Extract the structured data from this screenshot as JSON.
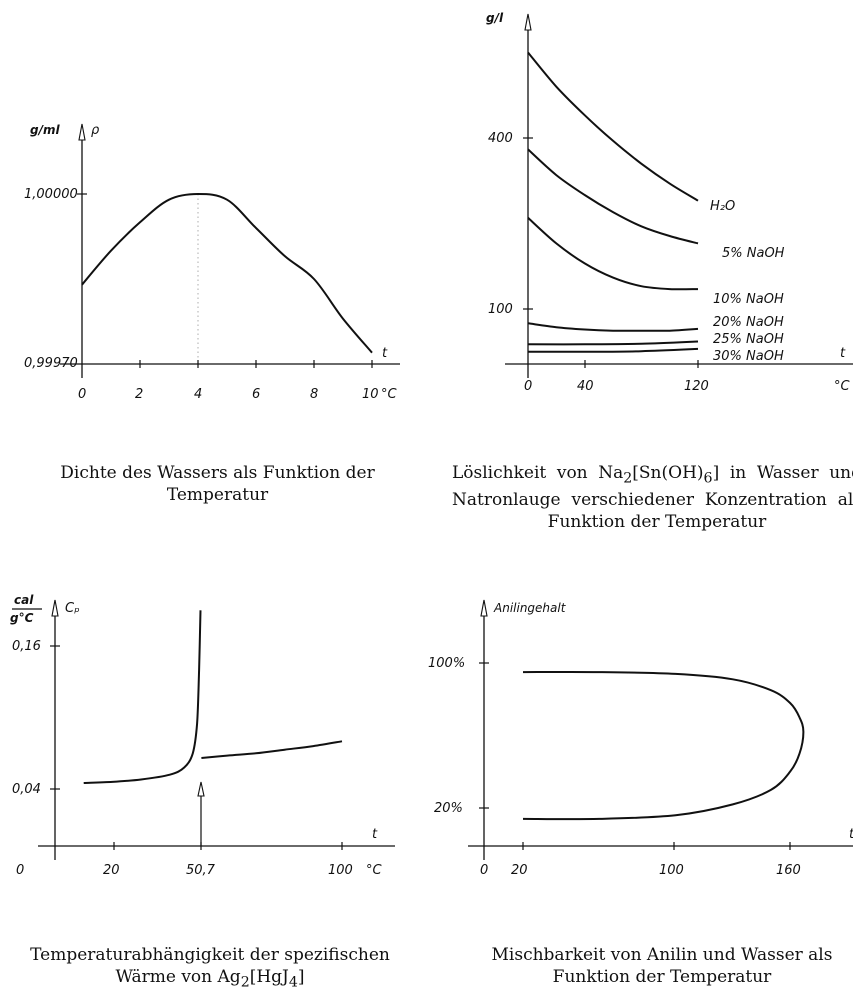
{
  "captions": {
    "density": "Dichte des Wassers als Funktion der Temperatur",
    "solubility_pre": "Löslichkeit von Na",
    "solubility_sub1": "2",
    "solubility_mid": "[Sn(OH)",
    "solubility_sub2": "6",
    "solubility_post": "] in Wasser und Natronlauge verschiedener Konzentration als Funktion der Temperatur",
    "heat_line1": "Temperaturabhängigkeit der spezifischen",
    "heat_line2_pre": "Wärme von Ag",
    "heat_sub1": "2",
    "heat_mid": "[HgJ",
    "heat_sub2": "4",
    "heat_post": "]",
    "miscibility_line1": "Mischbarkeit von Anilin und Wasser als",
    "miscibility_line2": "Funktion der Temperatur"
  },
  "chart_data": [
    {
      "type": "line",
      "id": "density",
      "y_unit": "g/ml",
      "y_symbol": "ρ",
      "x_symbol": "t",
      "x_unit": "°C",
      "x_ticks": [
        "0",
        "2",
        "4",
        "6",
        "8",
        "10"
      ],
      "y_ticks": [
        "0,99970",
        "1,00000"
      ],
      "xlim": [
        0,
        11
      ],
      "ylim": [
        0.9997,
        1.0
      ],
      "series": [
        {
          "x": [
            0,
            1,
            2,
            3,
            4,
            5,
            6,
            7,
            8,
            9,
            10
          ],
          "y": [
            0.99984,
            0.9999,
            0.99995,
            0.99999,
            1.0,
            0.99999,
            0.99994,
            0.99989,
            0.99985,
            0.99978,
            0.99972
          ]
        }
      ]
    },
    {
      "type": "line",
      "id": "solubility",
      "y_unit": "g/l",
      "x_symbol": "t",
      "x_unit": "°C",
      "x_ticks": [
        "0",
        "40",
        "120"
      ],
      "y_ticks": [
        "100",
        "400"
      ],
      "xlim": [
        0,
        150
      ],
      "ylim": [
        0,
        600
      ],
      "series": [
        {
          "name": "H₂O",
          "x": [
            0,
            20,
            40,
            60,
            80,
            100,
            120
          ],
          "y": [
            550,
            490,
            440,
            395,
            355,
            320,
            290
          ]
        },
        {
          "name": "5% NaOH",
          "x": [
            0,
            20,
            40,
            60,
            80,
            100,
            120
          ],
          "y": [
            380,
            335,
            300,
            270,
            245,
            228,
            215
          ]
        },
        {
          "name": "10% NaOH",
          "x": [
            0,
            20,
            40,
            60,
            80,
            100,
            120
          ],
          "y": [
            260,
            215,
            180,
            155,
            140,
            135,
            135
          ]
        },
        {
          "name": "20% NaOH",
          "x": [
            0,
            20,
            40,
            60,
            80,
            100,
            120
          ],
          "y": [
            75,
            68,
            64,
            62,
            62,
            62,
            65
          ]
        },
        {
          "name": "25% NaOH",
          "x": [
            0,
            40,
            80,
            120
          ],
          "y": [
            38,
            38,
            39,
            43
          ]
        },
        {
          "name": "30% NaOH",
          "x": [
            0,
            40,
            80,
            120
          ],
          "y": [
            25,
            25,
            26,
            30
          ]
        }
      ]
    },
    {
      "type": "line",
      "id": "heat",
      "y_unit_num": "cal",
      "y_unit_den": "g°C",
      "y_symbol": "Cₚ",
      "x_symbol": "t",
      "x_unit": "°C",
      "x_ticks": [
        "0",
        "20",
        "50,7",
        "100"
      ],
      "y_ticks": [
        "0,04",
        "0,16"
      ],
      "xlim": [
        0,
        110
      ],
      "ylim": [
        0,
        0.2
      ],
      "series": [
        {
          "x": [
            10,
            20,
            30,
            40,
            45,
            48,
            49.5,
            50.2,
            50.7
          ],
          "y": [
            0.045,
            0.046,
            0.048,
            0.052,
            0.058,
            0.07,
            0.095,
            0.14,
            0.19
          ]
        },
        {
          "x": [
            51,
            60,
            70,
            80,
            90,
            100
          ],
          "y": [
            0.066,
            0.068,
            0.07,
            0.073,
            0.076,
            0.08
          ]
        }
      ],
      "annotation": "50,7"
    },
    {
      "type": "line",
      "id": "miscibility",
      "y_symbol": "Anilingehalt",
      "x_symbol": "t",
      "x_unit": "°C",
      "x_ticks": [
        "0",
        "20",
        "100",
        "160"
      ],
      "y_ticks": [
        "20%",
        "100%"
      ],
      "xlim": [
        0,
        190
      ],
      "ylim": [
        0,
        120
      ],
      "series": [
        {
          "x": [
            20,
            60,
            100,
            130,
            150,
            160,
            165,
            167,
            165,
            160,
            150,
            130,
            100,
            60,
            20
          ],
          "y": [
            95,
            95,
            94,
            91,
            85,
            78,
            70,
            62,
            50,
            40,
            30,
            22,
            16,
            14,
            14
          ]
        }
      ]
    }
  ]
}
